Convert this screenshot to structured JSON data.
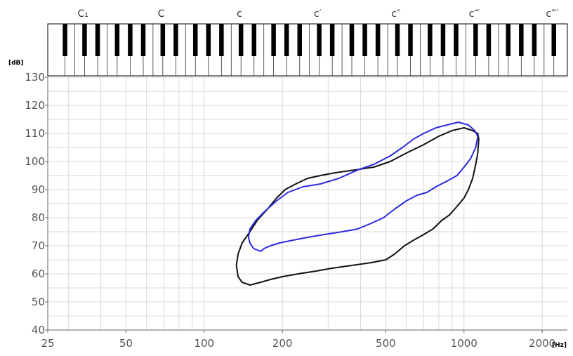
{
  "chart_data": {
    "type": "line",
    "title": "",
    "xlabel": "[Hz]",
    "ylabel": "[dB]",
    "x_scale": "log",
    "xlim": [
      25,
      2500
    ],
    "ylim": [
      40,
      130
    ],
    "grid": true,
    "x_ticks": [
      {
        "value": 25,
        "label": "25"
      },
      {
        "value": 50,
        "label": "50"
      },
      {
        "value": 100,
        "label": "100"
      },
      {
        "value": 200,
        "label": "200"
      },
      {
        "value": 500,
        "label": "500"
      },
      {
        "value": 1000,
        "label": "1000"
      },
      {
        "value": 2000,
        "label": "2000"
      }
    ],
    "y_ticks": [
      {
        "value": 40,
        "label": "40"
      },
      {
        "value": 50,
        "label": "50"
      },
      {
        "value": 60,
        "label": "60"
      },
      {
        "value": 70,
        "label": "70"
      },
      {
        "value": 80,
        "label": "80"
      },
      {
        "value": 90,
        "label": "90"
      },
      {
        "value": 100,
        "label": "100"
      },
      {
        "value": 110,
        "label": "110"
      },
      {
        "value": 120,
        "label": "120"
      },
      {
        "value": 130,
        "label": "130"
      }
    ],
    "keyboard_labels": [
      {
        "value": 32.7,
        "label": "C₁"
      },
      {
        "value": 65.4,
        "label": "C"
      },
      {
        "value": 130.8,
        "label": "c"
      },
      {
        "value": 261.6,
        "label": "c′"
      },
      {
        "value": 523.3,
        "label": "c″"
      },
      {
        "value": 1046.5,
        "label": "c‴"
      },
      {
        "value": 2093,
        "label": "c‴′"
      }
    ],
    "series": [
      {
        "color": "#111111",
        "points": [
          [
            150,
            56
          ],
          [
            140,
            57
          ],
          [
            135,
            59
          ],
          [
            133,
            63
          ],
          [
            135,
            67
          ],
          [
            140,
            71
          ],
          [
            150,
            75
          ],
          [
            160,
            79
          ],
          [
            175,
            83
          ],
          [
            190,
            87
          ],
          [
            205,
            90
          ],
          [
            225,
            92
          ],
          [
            250,
            94
          ],
          [
            280,
            95
          ],
          [
            320,
            96
          ],
          [
            380,
            97
          ],
          [
            450,
            98
          ],
          [
            520,
            100
          ],
          [
            600,
            103
          ],
          [
            700,
            106
          ],
          [
            800,
            109
          ],
          [
            900,
            111
          ],
          [
            1000,
            112
          ],
          [
            1080,
            111
          ],
          [
            1130,
            110
          ],
          [
            1140,
            108
          ],
          [
            1130,
            103
          ],
          [
            1110,
            99
          ],
          [
            1080,
            94
          ],
          [
            1040,
            90
          ],
          [
            1000,
            87
          ],
          [
            940,
            84
          ],
          [
            880,
            81
          ],
          [
            820,
            79
          ],
          [
            760,
            76
          ],
          [
            700,
            74
          ],
          [
            640,
            72
          ],
          [
            590,
            70
          ],
          [
            540,
            67
          ],
          [
            500,
            65
          ],
          [
            440,
            64
          ],
          [
            370,
            63
          ],
          [
            310,
            62
          ],
          [
            270,
            61
          ],
          [
            230,
            60
          ],
          [
            200,
            59
          ],
          [
            180,
            58
          ],
          [
            165,
            57
          ],
          [
            150,
            56
          ]
        ]
      },
      {
        "color": "#2b2be0",
        "points": [
          [
            165,
            68
          ],
          [
            155,
            69
          ],
          [
            150,
            71
          ],
          [
            148,
            73
          ],
          [
            150,
            76
          ],
          [
            158,
            79
          ],
          [
            170,
            82
          ],
          [
            190,
            86
          ],
          [
            210,
            89
          ],
          [
            240,
            91
          ],
          [
            280,
            92
          ],
          [
            330,
            94
          ],
          [
            390,
            97
          ],
          [
            450,
            99
          ],
          [
            520,
            102
          ],
          [
            580,
            105
          ],
          [
            640,
            108
          ],
          [
            700,
            110
          ],
          [
            780,
            112
          ],
          [
            860,
            113
          ],
          [
            950,
            114
          ],
          [
            1040,
            113
          ],
          [
            1100,
            111
          ],
          [
            1130,
            109
          ],
          [
            1110,
            105
          ],
          [
            1060,
            101
          ],
          [
            1000,
            98
          ],
          [
            940,
            95
          ],
          [
            860,
            93
          ],
          [
            780,
            91
          ],
          [
            720,
            89
          ],
          [
            660,
            88
          ],
          [
            600,
            86
          ],
          [
            540,
            83
          ],
          [
            490,
            80
          ],
          [
            440,
            78
          ],
          [
            390,
            76
          ],
          [
            340,
            75
          ],
          [
            290,
            74
          ],
          [
            250,
            73
          ],
          [
            220,
            72
          ],
          [
            195,
            71
          ],
          [
            180,
            70
          ],
          [
            170,
            69
          ],
          [
            165,
            68
          ]
        ]
      }
    ]
  }
}
